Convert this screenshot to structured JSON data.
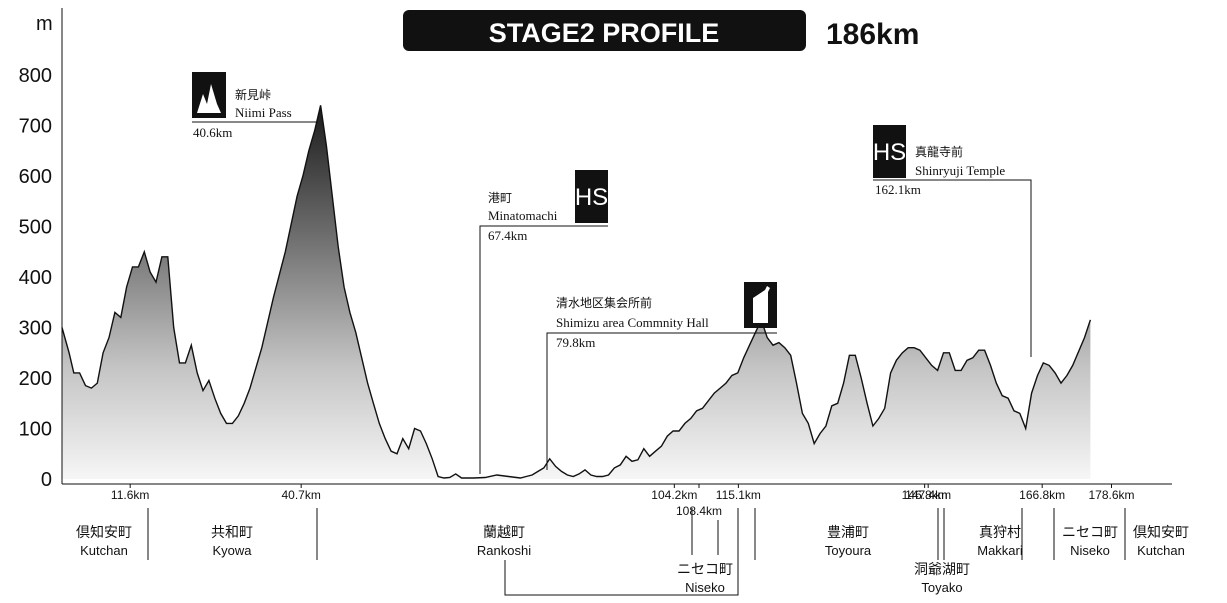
{
  "title": "STAGE2 PROFILE",
  "distance": "186km",
  "chart_data": {
    "type": "area",
    "ylabel": "m",
    "ylim": [
      0,
      800
    ],
    "xlim": [
      0,
      186
    ],
    "yticks": [
      0,
      100,
      200,
      300,
      400,
      500,
      600,
      700,
      800
    ],
    "km_markers": [
      {
        "km": 11.6,
        "label": "11.6km"
      },
      {
        "km": 40.7,
        "label": "40.7km"
      },
      {
        "km": 104.2,
        "label": "104.2km"
      },
      {
        "km": 108.4,
        "label": "108.4km"
      },
      {
        "km": 115.1,
        "label": "115.1km"
      },
      {
        "km": 146.8,
        "label": "146.8km"
      },
      {
        "km": 147.4,
        "label": "147.4km"
      },
      {
        "km": 166.8,
        "label": "166.8km"
      },
      {
        "km": 178.6,
        "label": "178.6km"
      }
    ],
    "towns": [
      {
        "jp": "倶知安町",
        "en": "Kutchan"
      },
      {
        "jp": "共和町",
        "en": "Kyowa"
      },
      {
        "jp": "蘭越町",
        "en": "Rankoshi"
      },
      {
        "jp": "ニセコ町",
        "en": "Niseko"
      },
      {
        "jp": "豊浦町",
        "en": "Toyoura"
      },
      {
        "jp": "洞爺湖町",
        "en": "Toyako"
      },
      {
        "jp": "真狩村",
        "en": "Makkari"
      },
      {
        "jp": "ニセコ町",
        "en": "Niseko"
      },
      {
        "jp": "倶知安町",
        "en": "Kutchan"
      }
    ],
    "annotations": [
      {
        "type": "kom",
        "km": 40.6,
        "jp": "新見峠",
        "en": "Niimi Pass",
        "label": "40.6km"
      },
      {
        "type": "hot-spot",
        "km": 67.4,
        "jp": "港町",
        "en": "Minatomachi",
        "label": "67.4km",
        "badge": "HS"
      },
      {
        "type": "feed",
        "km": 79.8,
        "jp": "清水地区集会所前",
        "en": "Shimizu area Commnity Hall",
        "label": "79.8km"
      },
      {
        "type": "hot-spot",
        "km": 162.1,
        "jp": "真龍寺前",
        "en": "Shinryuji Temple",
        "label": "162.1km",
        "badge": "HS"
      }
    ],
    "profile": [
      [
        0,
        300
      ],
      [
        1.2,
        250
      ],
      [
        2,
        210
      ],
      [
        3,
        210
      ],
      [
        4,
        185
      ],
      [
        5,
        180
      ],
      [
        6,
        190
      ],
      [
        7,
        250
      ],
      [
        8,
        280
      ],
      [
        9,
        330
      ],
      [
        10,
        320
      ],
      [
        11,
        380
      ],
      [
        12,
        420
      ],
      [
        13,
        420
      ],
      [
        14,
        450
      ],
      [
        15,
        410
      ],
      [
        16,
        390
      ],
      [
        17,
        440
      ],
      [
        18,
        440
      ],
      [
        19,
        300
      ],
      [
        20,
        230
      ],
      [
        21,
        230
      ],
      [
        22,
        265
      ],
      [
        23,
        210
      ],
      [
        24,
        175
      ],
      [
        25,
        195
      ],
      [
        26,
        160
      ],
      [
        27,
        130
      ],
      [
        28,
        110
      ],
      [
        29,
        110
      ],
      [
        30,
        125
      ],
      [
        31,
        150
      ],
      [
        32,
        180
      ],
      [
        34,
        260
      ],
      [
        36,
        360
      ],
      [
        38,
        450
      ],
      [
        40,
        560
      ],
      [
        41,
        600
      ],
      [
        42,
        650
      ],
      [
        43,
        690
      ],
      [
        44,
        740
      ],
      [
        45,
        660
      ],
      [
        46,
        560
      ],
      [
        47,
        460
      ],
      [
        48,
        380
      ],
      [
        49,
        330
      ],
      [
        50,
        290
      ],
      [
        51,
        240
      ],
      [
        52,
        190
      ],
      [
        53,
        150
      ],
      [
        54,
        110
      ],
      [
        55,
        80
      ],
      [
        56,
        55
      ],
      [
        57,
        50
      ],
      [
        58,
        80
      ],
      [
        59,
        60
      ],
      [
        60,
        100
      ],
      [
        61,
        95
      ],
      [
        62,
        70
      ],
      [
        63,
        40
      ],
      [
        64,
        5
      ],
      [
        65,
        2
      ],
      [
        66,
        3
      ],
      [
        67,
        10
      ],
      [
        68,
        2
      ],
      [
        70,
        2
      ],
      [
        72,
        3
      ],
      [
        74,
        8
      ],
      [
        76,
        5
      ],
      [
        78,
        2
      ],
      [
        79,
        5
      ],
      [
        80,
        8
      ],
      [
        81,
        15
      ],
      [
        82,
        22
      ],
      [
        83,
        40
      ],
      [
        84,
        25
      ],
      [
        85,
        15
      ],
      [
        86,
        8
      ],
      [
        87,
        5
      ],
      [
        88,
        10
      ],
      [
        89,
        18
      ],
      [
        90,
        8
      ],
      [
        91,
        5
      ],
      [
        92,
        5
      ],
      [
        93,
        8
      ],
      [
        94,
        22
      ],
      [
        95,
        28
      ],
      [
        96,
        45
      ],
      [
        97,
        35
      ],
      [
        98,
        38
      ],
      [
        99,
        60
      ],
      [
        100,
        45
      ],
      [
        101,
        55
      ],
      [
        102,
        65
      ],
      [
        103,
        85
      ],
      [
        104,
        95
      ],
      [
        105,
        95
      ],
      [
        106,
        110
      ],
      [
        107,
        120
      ],
      [
        108,
        135
      ],
      [
        109,
        140
      ],
      [
        110,
        155
      ],
      [
        111,
        170
      ],
      [
        112,
        180
      ],
      [
        113,
        190
      ],
      [
        114,
        205
      ],
      [
        115,
        210
      ],
      [
        116,
        240
      ],
      [
        117,
        265
      ],
      [
        118,
        290
      ],
      [
        119,
        315
      ],
      [
        120,
        280
      ],
      [
        121,
        265
      ],
      [
        122,
        270
      ],
      [
        123,
        260
      ],
      [
        124,
        245
      ],
      [
        125,
        190
      ],
      [
        126,
        130
      ],
      [
        127,
        110
      ],
      [
        128,
        70
      ],
      [
        129,
        90
      ],
      [
        130,
        105
      ],
      [
        131,
        145
      ],
      [
        132,
        150
      ],
      [
        133,
        190
      ],
      [
        134,
        245
      ],
      [
        135,
        245
      ],
      [
        136,
        200
      ],
      [
        137,
        150
      ],
      [
        138,
        105
      ],
      [
        139,
        120
      ],
      [
        140,
        140
      ],
      [
        141,
        210
      ],
      [
        142,
        235
      ],
      [
        143,
        250
      ],
      [
        144,
        260
      ],
      [
        145,
        260
      ],
      [
        146,
        255
      ],
      [
        147,
        240
      ],
      [
        148,
        225
      ],
      [
        149,
        215
      ],
      [
        150,
        250
      ],
      [
        151,
        250
      ],
      [
        152,
        215
      ],
      [
        153,
        215
      ],
      [
        154,
        235
      ],
      [
        155,
        240
      ],
      [
        156,
        255
      ],
      [
        157,
        255
      ],
      [
        158,
        225
      ],
      [
        159,
        190
      ],
      [
        160,
        165
      ],
      [
        161,
        160
      ],
      [
        162,
        135
      ],
      [
        163,
        130
      ],
      [
        164,
        100
      ],
      [
        165,
        170
      ],
      [
        166,
        205
      ],
      [
        167,
        230
      ],
      [
        168,
        225
      ],
      [
        169,
        210
      ],
      [
        170,
        190
      ],
      [
        171,
        205
      ],
      [
        172,
        225
      ],
      [
        174,
        280
      ],
      [
        175,
        315
      ]
    ]
  }
}
